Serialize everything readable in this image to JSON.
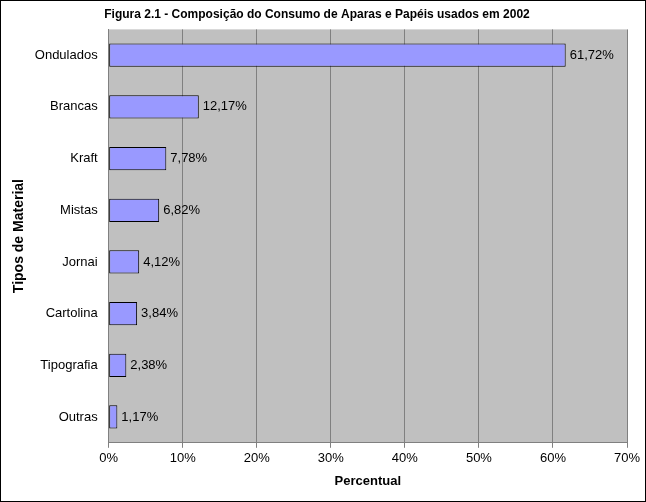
{
  "chart_data": {
    "type": "bar",
    "title": "Figura 2.1 - Composição do Consumo de Aparas e Papéis usados em 2002",
    "orientation": "horizontal",
    "x_label": "Percentual",
    "y_label": "Tipos de Material",
    "categories": [
      "Ondulados",
      "Brancas",
      "Kraft",
      "Mistas",
      "Jornai",
      "Cartolina",
      "Tipografia",
      "Outras"
    ],
    "values": [
      61.72,
      12.17,
      7.78,
      6.82,
      4.12,
      3.84,
      2.38,
      1.17
    ],
    "value_labels": [
      "61,72%",
      "12,17%",
      "7,78%",
      "6,82%",
      "4,12%",
      "3,84%",
      "2,38%",
      "1,17%"
    ],
    "data_labels": true,
    "color": "#9999ff",
    "xlim": [
      0,
      70
    ],
    "xticks": [
      {
        "value": 0,
        "label": "0%"
      },
      {
        "value": 10,
        "label": "10%"
      },
      {
        "value": 20,
        "label": "20%"
      },
      {
        "value": 30,
        "label": "30%"
      },
      {
        "value": 40,
        "label": "40%"
      },
      {
        "value": 50,
        "label": "50%"
      },
      {
        "value": 60,
        "label": "60%"
      },
      {
        "value": 70,
        "label": "70%"
      }
    ],
    "grid": true,
    "legend": false
  }
}
